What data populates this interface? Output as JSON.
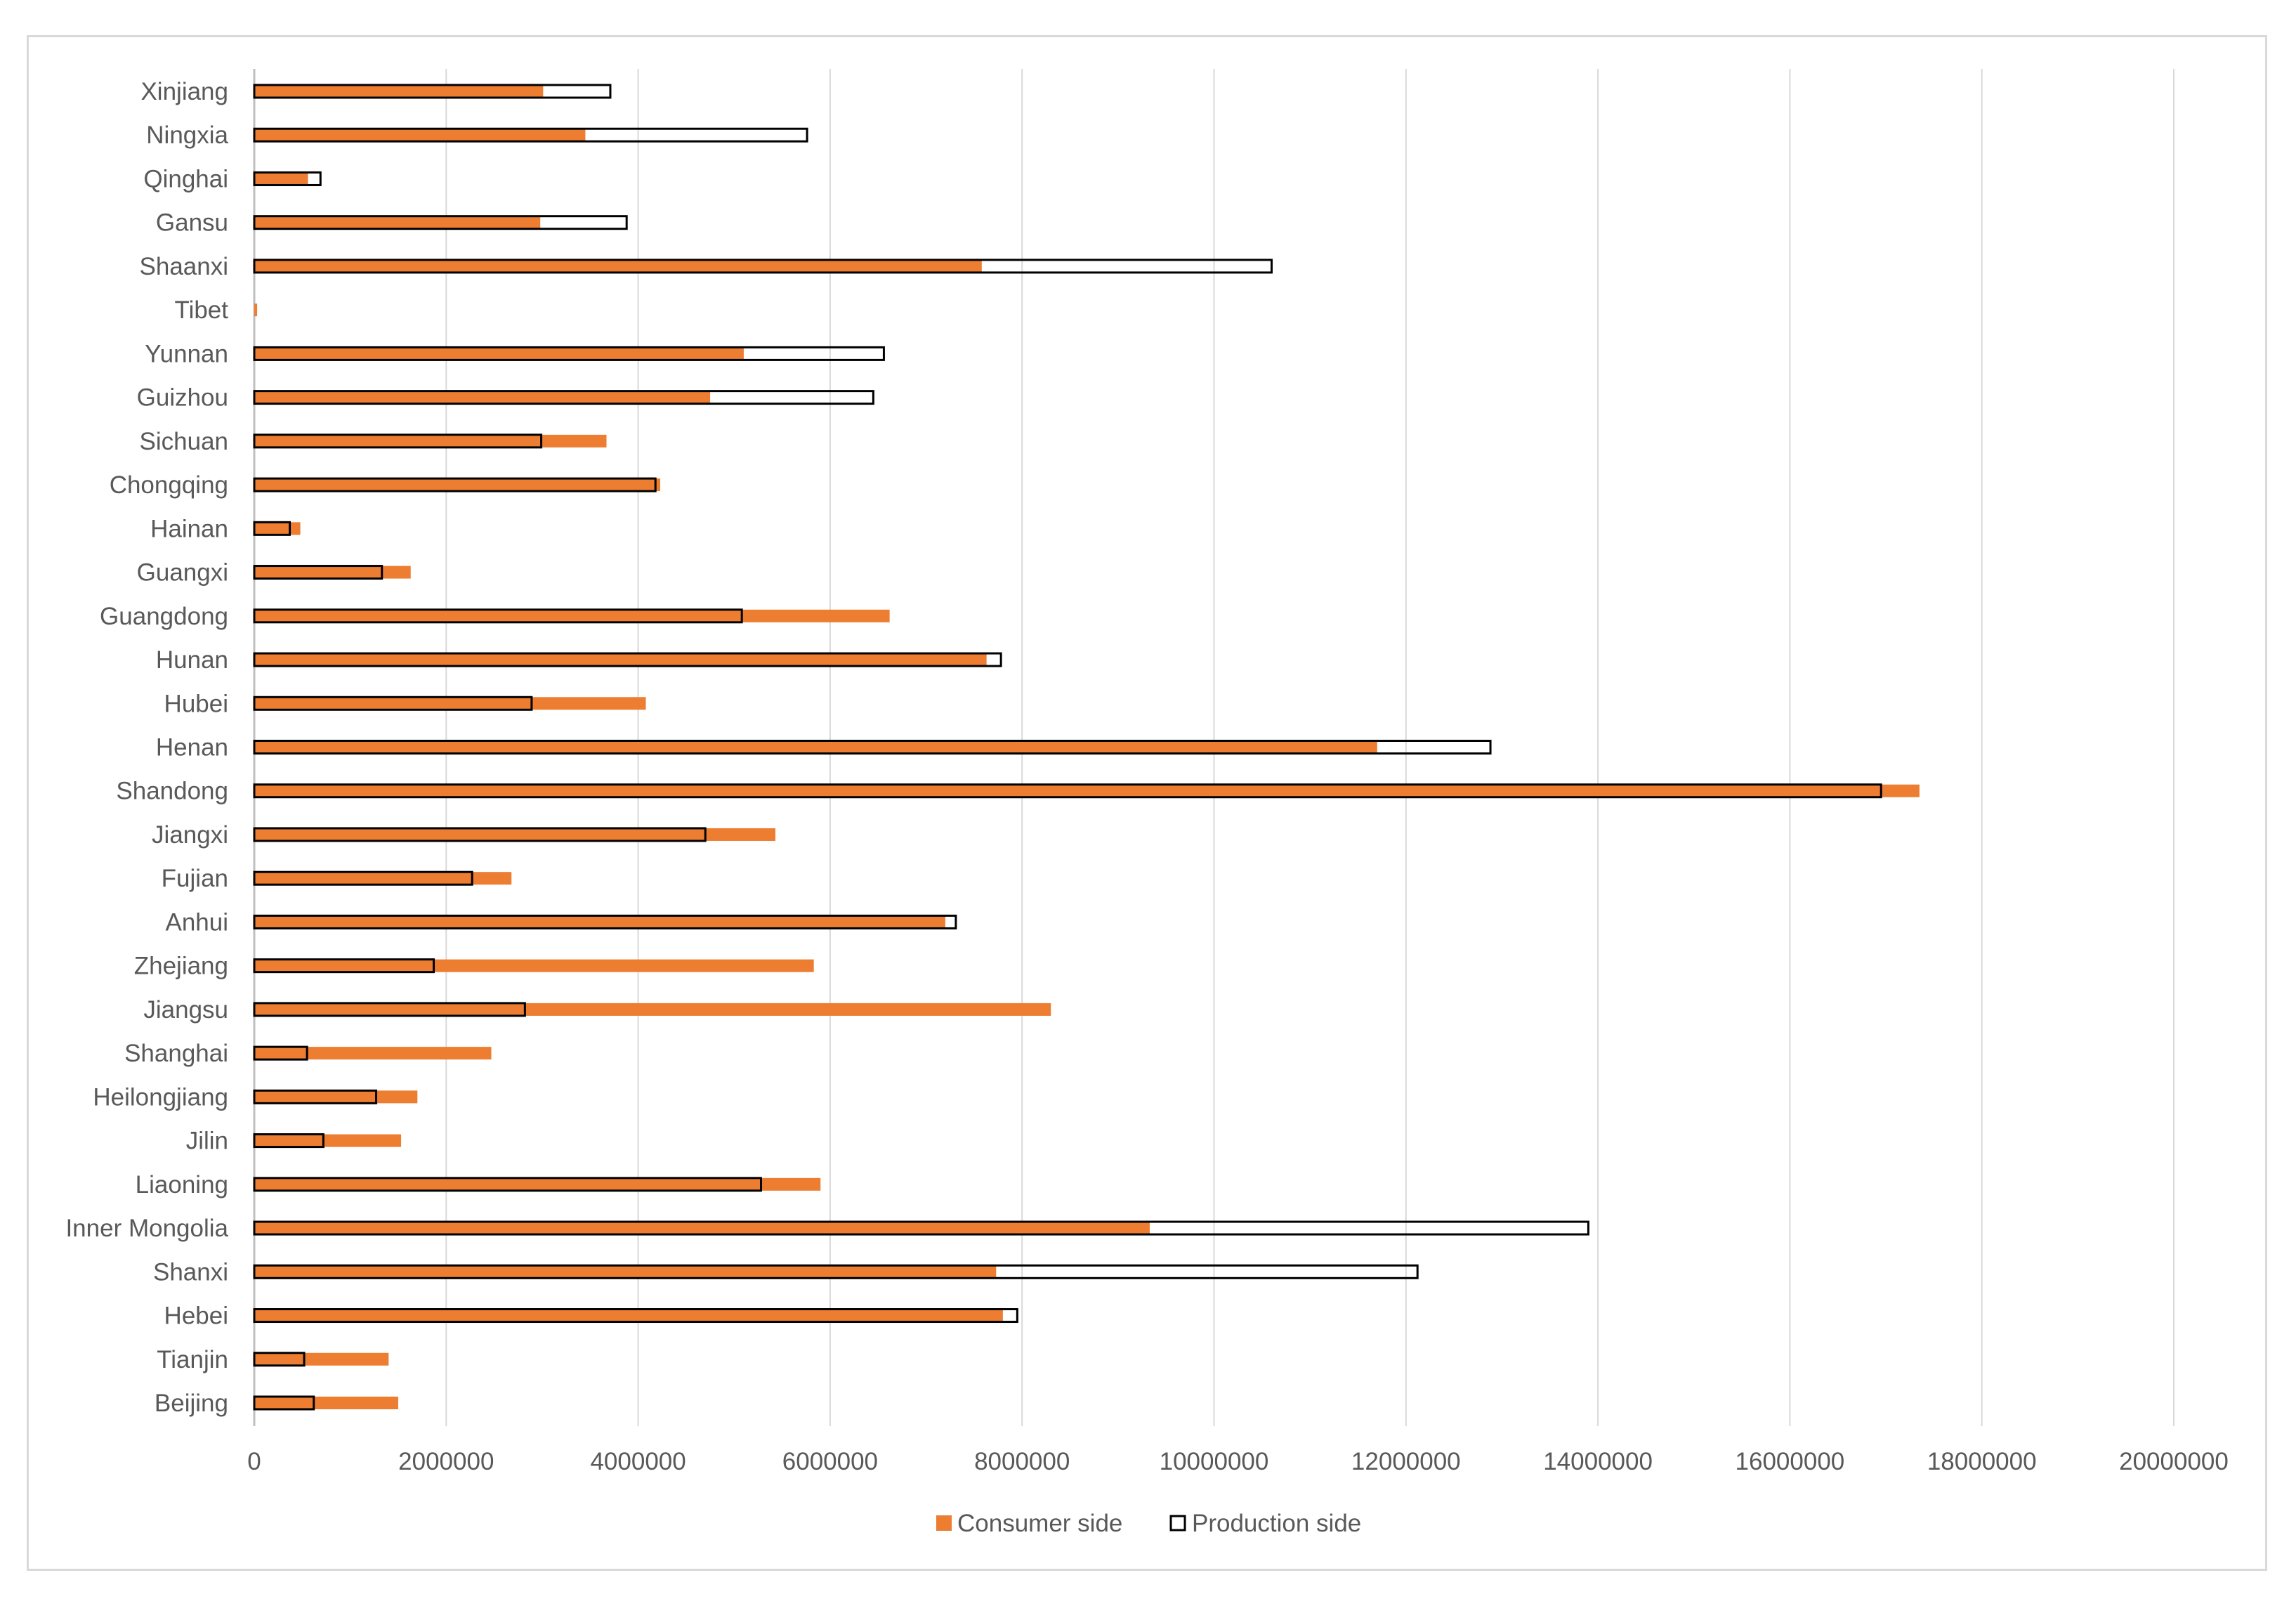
{
  "chart_data": {
    "type": "bar",
    "orientation": "horizontal",
    "title": "",
    "xlabel": "",
    "ylabel": "",
    "xlim": [
      0,
      20000000
    ],
    "x_ticks": [
      0,
      2000000,
      4000000,
      6000000,
      8000000,
      10000000,
      12000000,
      14000000,
      16000000,
      18000000,
      20000000
    ],
    "x_tick_labels": [
      "0",
      "2000000",
      "4000000",
      "6000000",
      "8000000",
      "10000000",
      "12000000",
      "14000000",
      "16000000",
      "18000000",
      "20000000"
    ],
    "grid": "vertical",
    "legend_position": "bottom",
    "categories": [
      "Beijing",
      "Tianjin",
      "Hebei",
      "Shanxi",
      "Inner Mongolia",
      "Liaoning",
      "Jilin",
      "Heilongjiang",
      "Shanghai",
      "Jiangsu",
      "Zhejiang",
      "Anhui",
      "Fujian",
      "Jiangxi",
      "Shandong",
      "Henan",
      "Hubei",
      "Hunan",
      "Guangdong",
      "Guangxi",
      "Hainan",
      "Chongqing",
      "Sichuan",
      "Guizhou",
      "Yunnan",
      "Tibet",
      "Shaanxi",
      "Gansu",
      "Qinghai",
      "Ningxia",
      "Xinjiang"
    ],
    "series": [
      {
        "name": "Consumer side",
        "color": "#ed7d31",
        "style": "filled",
        "values": [
          1500000,
          1400000,
          7800000,
          7730000,
          9330000,
          5900000,
          1530000,
          1700000,
          2470000,
          8300000,
          5830000,
          7200000,
          2680000,
          5430000,
          17350000,
          11700000,
          4080000,
          7630000,
          6620000,
          1630000,
          480000,
          4230000,
          3670000,
          4750000,
          5100000,
          30000,
          7580000,
          2980000,
          560000,
          3450000,
          3010000
        ]
      },
      {
        "name": "Production side",
        "color": "#000000",
        "style": "outline",
        "values": [
          620000,
          520000,
          7950000,
          12120000,
          13900000,
          5280000,
          720000,
          1270000,
          550000,
          2820000,
          1870000,
          7310000,
          2270000,
          4700000,
          16950000,
          12880000,
          2890000,
          7780000,
          5080000,
          1330000,
          370000,
          4180000,
          2990000,
          6450000,
          6560000,
          0,
          10600000,
          3880000,
          690000,
          5760000,
          3710000
        ]
      }
    ]
  }
}
